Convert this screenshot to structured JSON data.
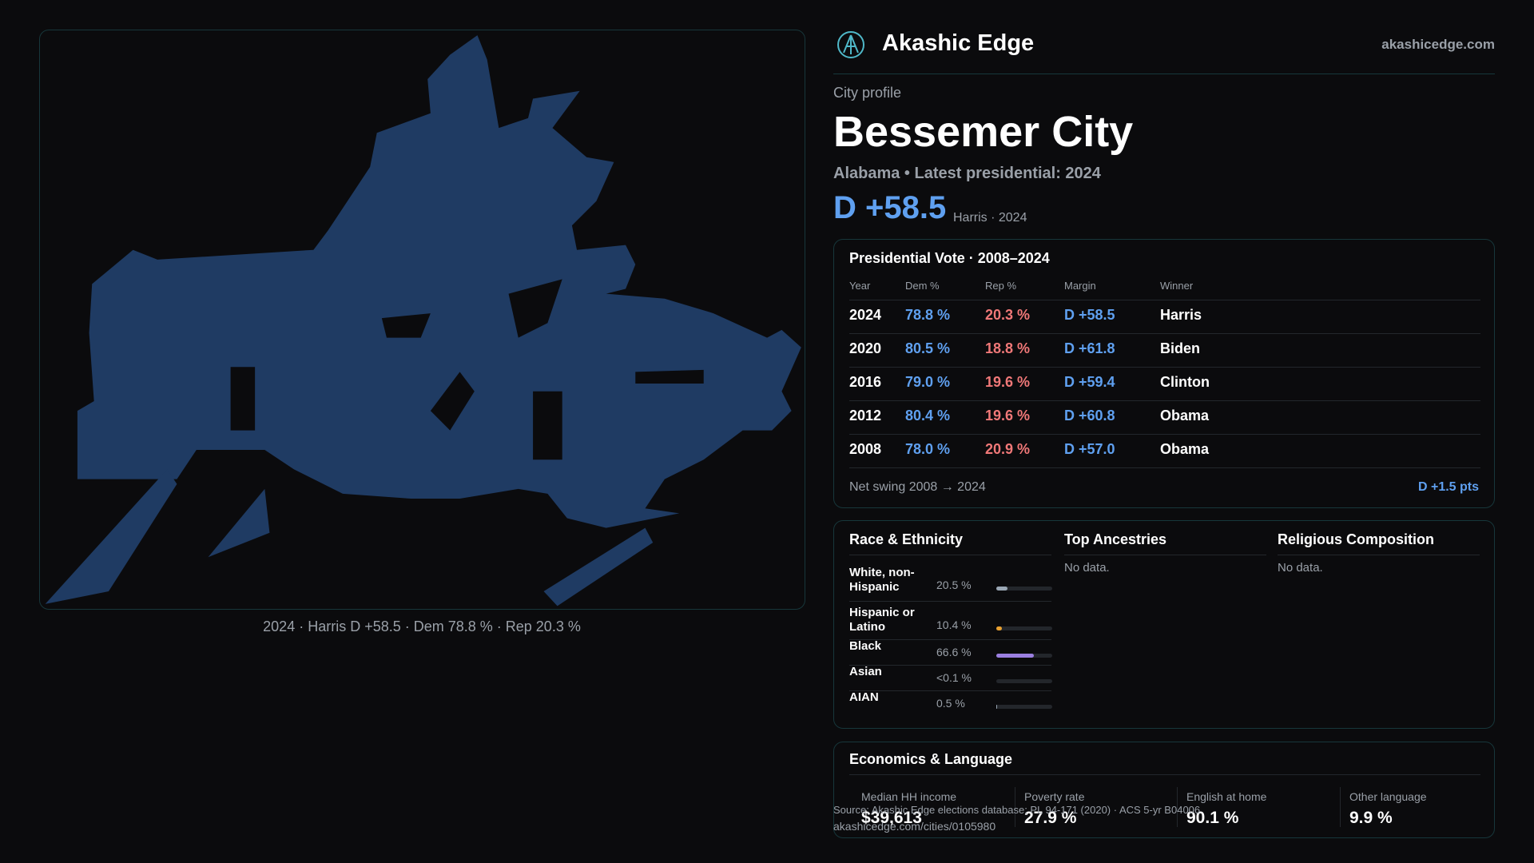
{
  "header": {
    "brand": "Akashic Edge",
    "domain": "akashicedge.com"
  },
  "map": {
    "caption": "2024 · Harris D +58.5 · Dem 78.8 % · Rep 20.3 %"
  },
  "profile": {
    "kicker": "City profile",
    "title": "Bessemer City",
    "subtitle": "Alabama • Latest presidential: 2024",
    "margin": "D +58.5",
    "margin_note": "Harris · 2024"
  },
  "vote": {
    "title": "Presidential Vote · 2008–2024",
    "columns": [
      "Year",
      "Dem %",
      "Rep %",
      "Margin",
      "Winner"
    ],
    "rows": [
      [
        "2024",
        "78.8 %",
        "20.3 %",
        "D +58.5",
        "Harris"
      ],
      [
        "2020",
        "80.5 %",
        "18.8 %",
        "D +61.8",
        "Biden"
      ],
      [
        "2016",
        "79.0 %",
        "19.6 %",
        "D +59.4",
        "Clinton"
      ],
      [
        "2012",
        "80.4 %",
        "19.6 %",
        "D +60.8",
        "Obama"
      ],
      [
        "2008",
        "78.0 %",
        "20.9 %",
        "D +57.0",
        "Obama"
      ]
    ],
    "swing_label": "Net swing 2008 → 2024",
    "swing_value": "D +1.5 pts"
  },
  "demographics": {
    "race_title": "Race & Ethnicity",
    "race": [
      {
        "label": "White, non-Hispanic",
        "value": 20.5,
        "value_label": "20.5 %",
        "color": "#9aa7b4"
      },
      {
        "label": "Hispanic or Latino",
        "value": 10.4,
        "value_label": "10.4 %",
        "color": "#e8a030"
      },
      {
        "label": "Black",
        "value": 66.6,
        "value_label": "66.6 %",
        "color": "#9b7fe0"
      },
      {
        "label": "Asian",
        "value": null,
        "value_label": "<0.1 %",
        "color": "#9aa7b4"
      },
      {
        "label": "AIAN",
        "value": 0.5,
        "value_label": "0.5 %",
        "color": "#9aa7b4"
      }
    ],
    "ancestry_title": "Top Ancestries",
    "ancestry_note": "No data.",
    "religion_title": "Religious Composition",
    "religion_note": "No data."
  },
  "economics": {
    "title": "Economics & Language",
    "stats": [
      {
        "label": "Median HH income",
        "value": "$39,613"
      },
      {
        "label": "Poverty rate",
        "value": "27.9 %"
      },
      {
        "label": "English at home",
        "value": "90.1 %"
      },
      {
        "label": "Other language",
        "value": "9.9 %"
      }
    ]
  },
  "footer": {
    "source": "Source: Akashic Edge elections database; PL 94-171 (2020) · ACS 5-yr B04006",
    "url": "akashicedge.com/cities/0105980"
  }
}
